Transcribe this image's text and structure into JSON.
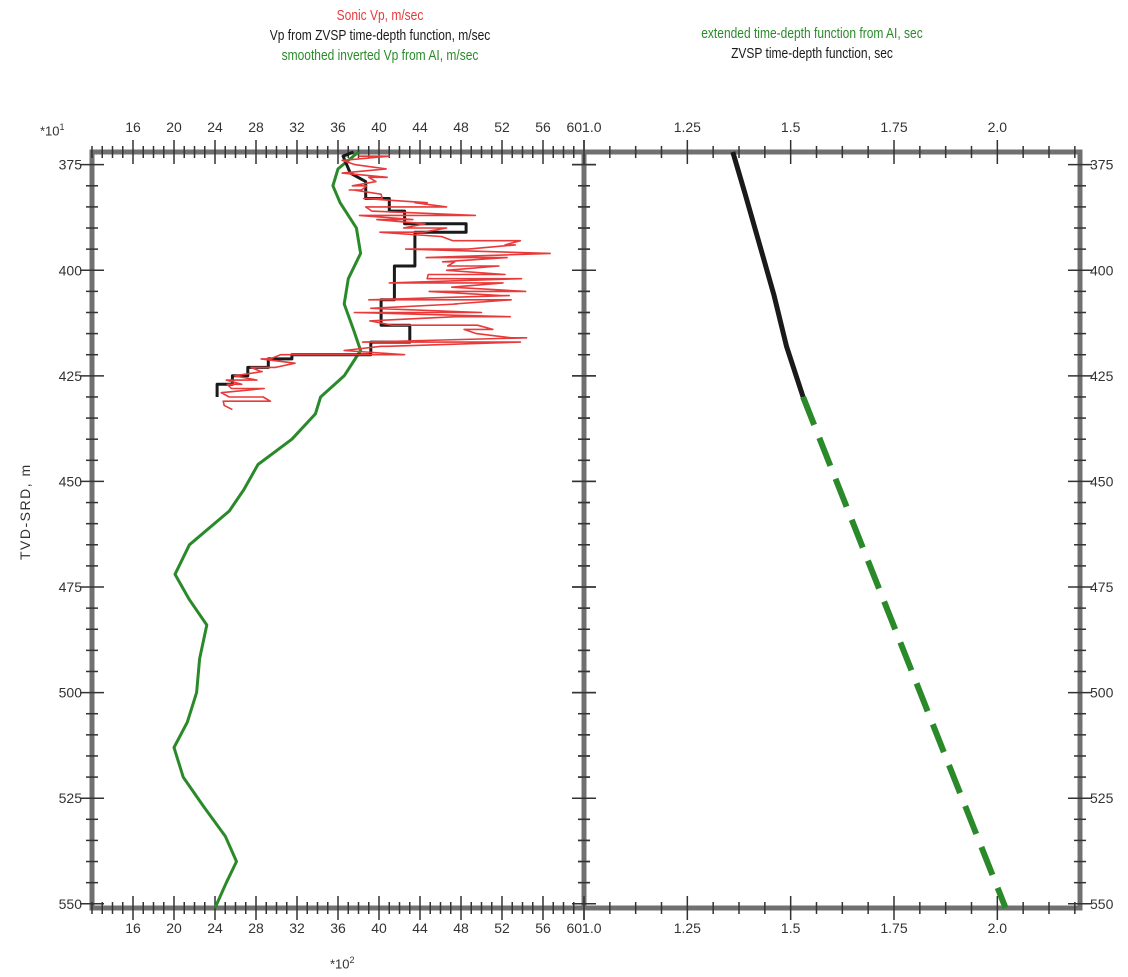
{
  "legend_left": {
    "line1": "Sonic Vp, m/sec",
    "line2": "Vp from ZVSP time-depth function, m/sec",
    "line3": "smoothed inverted Vp from AI, m/sec",
    "color1": "#e83a3a",
    "color2": "#1a1a1a",
    "color3": "#2a8a2a"
  },
  "legend_right": {
    "line1": "extended time-depth function from AI, sec",
    "line2": "ZVSP time-depth function, sec",
    "color1": "#2a8a2a",
    "color2": "#1a1a1a"
  },
  "multipliers": {
    "y_top": "*10",
    "y_top_exp": "1",
    "x_bottom": "*10",
    "x_bottom_exp": "2"
  },
  "ylabel": "TVD-SRD, m",
  "chart_data": [
    {
      "type": "line",
      "panel": "left",
      "xlim": [
        12,
        60
      ],
      "x_ticks": [
        16,
        20,
        24,
        28,
        32,
        36,
        40,
        44,
        48,
        52,
        56,
        60
      ],
      "ylim": [
        372,
        551
      ],
      "y_ticks": [
        375,
        400,
        425,
        450,
        475,
        500,
        525,
        550
      ],
      "ylabel": "TVD-SRD, m",
      "series": [
        {
          "name": "smoothed inverted Vp from AI, m/sec",
          "color": "#2a8a2a",
          "points": [
            [
              38,
              372
            ],
            [
              36,
              376
            ],
            [
              35.5,
              380
            ],
            [
              36.2,
              384
            ],
            [
              37.8,
              390
            ],
            [
              38.2,
              396
            ],
            [
              37,
              402
            ],
            [
              36.6,
              408
            ],
            [
              37.5,
              414
            ],
            [
              38.2,
              419
            ],
            [
              36.6,
              425
            ],
            [
              34.3,
              430
            ],
            [
              33.8,
              434
            ],
            [
              31.5,
              440
            ],
            [
              28.2,
              446
            ],
            [
              26.8,
              452
            ],
            [
              25.4,
              457
            ],
            [
              21.5,
              465
            ],
            [
              20.1,
              472
            ],
            [
              21.5,
              478
            ],
            [
              23.2,
              484
            ],
            [
              22.5,
              492
            ],
            [
              22.2,
              500
            ],
            [
              21.3,
              507
            ],
            [
              20,
              513
            ],
            [
              20.9,
              520
            ],
            [
              22.9,
              527
            ],
            [
              25,
              534
            ],
            [
              26.1,
              540
            ],
            [
              25.1,
              545
            ],
            [
              24,
              551
            ]
          ]
        },
        {
          "name": "Vp from ZVSP time-depth function, m/sec",
          "color": "#1a1a1a",
          "points": [
            [
              37.5,
              372
            ],
            [
              36.5,
              373
            ],
            [
              37.2,
              377
            ],
            [
              38.7,
              379
            ],
            [
              38.7,
              383
            ],
            [
              41,
              383
            ],
            [
              41,
              386
            ],
            [
              42.5,
              386
            ],
            [
              42.5,
              389
            ],
            [
              48.5,
              389
            ],
            [
              48.5,
              391
            ],
            [
              43.5,
              391
            ],
            [
              43.5,
              399
            ],
            [
              41.5,
              399
            ],
            [
              41.5,
              407
            ],
            [
              40.2,
              407
            ],
            [
              40.2,
              413
            ],
            [
              43,
              413
            ],
            [
              43,
              417
            ],
            [
              39.2,
              417
            ],
            [
              39.2,
              420
            ],
            [
              31.5,
              420
            ],
            [
              31.5,
              421
            ],
            [
              29.2,
              421
            ],
            [
              29.2,
              423
            ],
            [
              27.2,
              423
            ],
            [
              27.2,
              425
            ],
            [
              25.7,
              425
            ],
            [
              25.7,
              427
            ],
            [
              24.2,
              427
            ],
            [
              24.2,
              430
            ]
          ]
        },
        {
          "name": "Sonic Vp, m/sec",
          "color": "#e83a3a",
          "points": [
            [
              38,
              373
            ],
            [
              41,
              373
            ],
            [
              36.4,
              374
            ],
            [
              37.7,
              375
            ],
            [
              40.7,
              376
            ],
            [
              36.4,
              377
            ],
            [
              40.8,
              378
            ],
            [
              39,
              378
            ],
            [
              39.7,
              379
            ],
            [
              37.4,
              380
            ],
            [
              38.8,
              380
            ],
            [
              38.3,
              381
            ],
            [
              37.1,
              381
            ],
            [
              37.5,
              381
            ],
            [
              40.2,
              382
            ],
            [
              40.3,
              383
            ],
            [
              38.5,
              383
            ],
            [
              44.7,
              384
            ],
            [
              43.5,
              384
            ],
            [
              46.6,
              385
            ],
            [
              38.7,
              385
            ],
            [
              39.3,
              386
            ],
            [
              49.4,
              387
            ],
            [
              38.1,
              387
            ],
            [
              43.3,
              388
            ],
            [
              39.8,
              388
            ],
            [
              44.5,
              389
            ],
            [
              42.4,
              390
            ],
            [
              46.6,
              390
            ],
            [
              44.3,
              391
            ],
            [
              40.1,
              391
            ],
            [
              46,
              392
            ],
            [
              46.1,
              392
            ],
            [
              47.2,
              393
            ],
            [
              53.8,
              393
            ],
            [
              52.3,
              394
            ],
            [
              53.3,
              394
            ],
            [
              48.7,
              395
            ],
            [
              42.6,
              395
            ],
            [
              56.7,
              396
            ],
            [
              44.6,
              397
            ],
            [
              52.5,
              397
            ],
            [
              46.2,
              398
            ],
            [
              47.4,
              398
            ],
            [
              46.7,
              399
            ],
            [
              51.7,
              399
            ],
            [
              46.6,
              400
            ],
            [
              52.3,
              401
            ],
            [
              44.8,
              401
            ],
            [
              44.7,
              402
            ],
            [
              53.9,
              402
            ],
            [
              41,
              403
            ],
            [
              52.1,
              403
            ],
            [
              47.1,
              404
            ],
            [
              54.3,
              405
            ],
            [
              44.9,
              405
            ],
            [
              51.9,
              406
            ],
            [
              52.7,
              406
            ],
            [
              39,
              407
            ],
            [
              52.9,
              407
            ],
            [
              47.3,
              408
            ],
            [
              47.6,
              408
            ],
            [
              39.2,
              409
            ],
            [
              50,
              410
            ],
            [
              37.6,
              410
            ],
            [
              52.8,
              411
            ],
            [
              47.5,
              411
            ],
            [
              39.1,
              412
            ],
            [
              41.3,
              413
            ],
            [
              49.6,
              413
            ],
            [
              51.1,
              414
            ],
            [
              48.3,
              414
            ],
            [
              49.5,
              415
            ],
            [
              52.9,
              416
            ],
            [
              54.4,
              416
            ],
            [
              38.4,
              417
            ],
            [
              53.8,
              417
            ],
            [
              40.9,
              418
            ],
            [
              40.2,
              418
            ],
            [
              36.6,
              419
            ],
            [
              42.5,
              420
            ],
            [
              30.4,
              420
            ],
            [
              29.4,
              421
            ],
            [
              28.5,
              421
            ],
            [
              31.8,
              422
            ],
            [
              29.9,
              423
            ],
            [
              27.5,
              423
            ],
            [
              28.5,
              424
            ],
            [
              28.6,
              424
            ],
            [
              25.9,
              425
            ],
            [
              28.1,
              426
            ],
            [
              25.1,
              426
            ],
            [
              26.6,
              427
            ],
            [
              25.2,
              427
            ],
            [
              25.6,
              428
            ],
            [
              28.8,
              428
            ],
            [
              24.6,
              429
            ],
            [
              25.4,
              430
            ],
            [
              28.7,
              430
            ],
            [
              29.4,
              431
            ],
            [
              24.8,
              431
            ],
            [
              24.9,
              432
            ],
            [
              25.7,
              433
            ]
          ]
        }
      ]
    },
    {
      "type": "line",
      "panel": "right",
      "xlim": [
        1.0,
        2.2
      ],
      "x_ticks": [
        1.0,
        1.25,
        1.5,
        1.75,
        2.0
      ],
      "x_tick_labels": [
        "1.0",
        "1.25",
        "1.5",
        "1.75",
        "2.0"
      ],
      "ylim": [
        372,
        551
      ],
      "y_ticks": [
        375,
        400,
        425,
        450,
        475,
        500,
        525,
        550
      ],
      "series": [
        {
          "name": "ZVSP time-depth function, sec",
          "color": "#1a1a1a",
          "style": "solid",
          "points": [
            [
              1.36,
              372
            ],
            [
              1.39,
              382
            ],
            [
              1.425,
              394
            ],
            [
              1.46,
              406
            ],
            [
              1.49,
              418
            ],
            [
              1.53,
              430
            ]
          ]
        },
        {
          "name": "extended time-depth function from AI, sec",
          "color": "#2a8a2a",
          "style": "dashed",
          "points": [
            [
              1.53,
              430
            ],
            [
              2.02,
              551
            ]
          ]
        }
      ]
    }
  ]
}
